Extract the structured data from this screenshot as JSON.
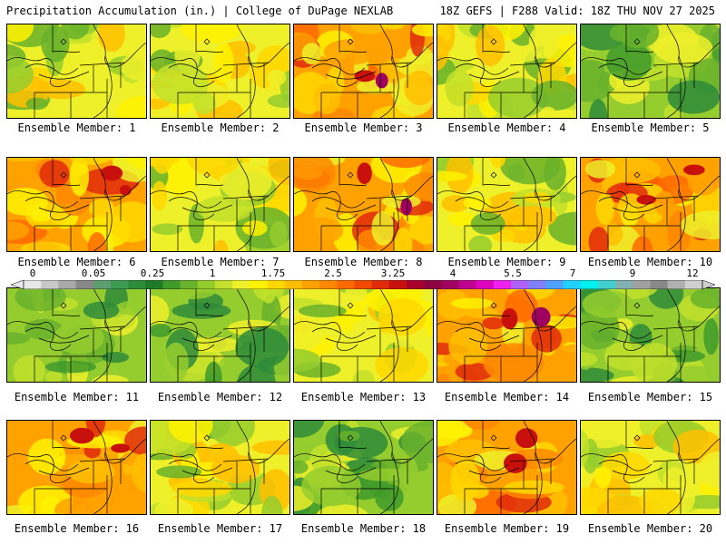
{
  "header": {
    "left": "Precipitation Accumulation (in.) | College of DuPage NEXLAB",
    "right": "18Z GEFS | F288 Valid: 18Z THU NOV 27 2025"
  },
  "colorbar": {
    "labels": [
      "0",
      "0.05",
      "0.25",
      "1",
      "1.75",
      "2.5",
      "3.25",
      "4",
      "5.5",
      "7",
      "9",
      "12"
    ],
    "colors": [
      "#e8e8e8",
      "#c8c8c8",
      "#a8a8a8",
      "#888888",
      "#5f9e72",
      "#3c9a52",
      "#2e8b3a",
      "#1f7a28",
      "#3f9a2a",
      "#68b22c",
      "#95cc2e",
      "#c2e02c",
      "#eef02a",
      "#fff200",
      "#ffd800",
      "#ffbf00",
      "#ffa200",
      "#ff8800",
      "#ff6a00",
      "#f04a00",
      "#e02a0a",
      "#c8100c",
      "#a8002a",
      "#8c0040",
      "#a00060",
      "#c00090",
      "#e000c0",
      "#f020f0",
      "#b060ff",
      "#8080ff",
      "#50a0ff",
      "#20d0ff",
      "#00f0f0",
      "#40d0d0",
      "#80b0b0",
      "#a0a0a0",
      "#888888",
      "#b0b0b0",
      "#d0d0d0"
    ]
  },
  "members": [
    {
      "label": "Ensemble Member: 1"
    },
    {
      "label": "Ensemble Member: 2"
    },
    {
      "label": "Ensemble Member: 3"
    },
    {
      "label": "Ensemble Member: 4"
    },
    {
      "label": "Ensemble Member: 5"
    },
    {
      "label": "Ensemble Member: 6"
    },
    {
      "label": "Ensemble Member: 7"
    },
    {
      "label": "Ensemble Member: 8"
    },
    {
      "label": "Ensemble Member: 9"
    },
    {
      "label": "Ensemble Member: 10"
    },
    {
      "label": "Ensemble Member: 11"
    },
    {
      "label": "Ensemble Member: 12"
    },
    {
      "label": "Ensemble Member: 13"
    },
    {
      "label": "Ensemble Member: 14"
    },
    {
      "label": "Ensemble Member: 15"
    },
    {
      "label": "Ensemble Member: 16"
    },
    {
      "label": "Ensemble Member: 17"
    },
    {
      "label": "Ensemble Member: 18"
    },
    {
      "label": "Ensemble Member: 19"
    },
    {
      "label": "Ensemble Member: 20"
    }
  ]
}
